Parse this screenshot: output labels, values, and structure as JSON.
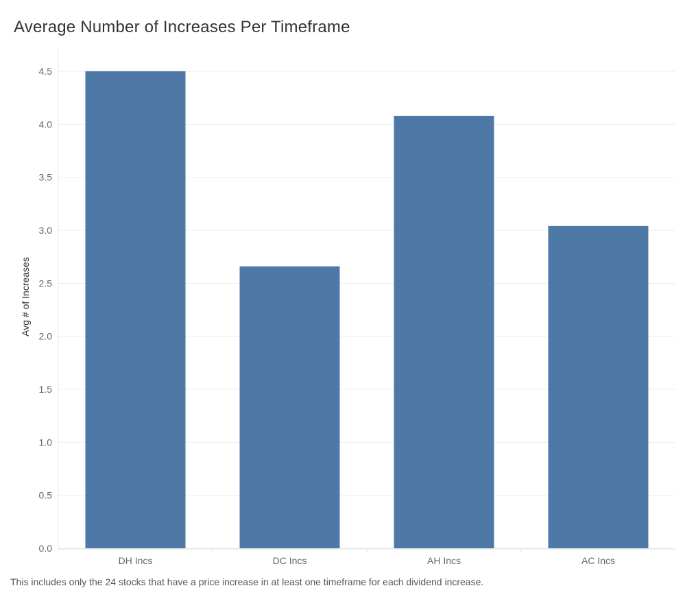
{
  "chart_data": {
    "type": "bar",
    "title": "Average Number of Increases Per Timeframe",
    "ylabel": "Avg # of Increases",
    "xlabel": "",
    "categories": [
      "DH Incs",
      "DC Incs",
      "AH Incs",
      "AC Incs"
    ],
    "values": [
      4.5,
      2.66,
      4.08,
      3.04
    ],
    "ylim": [
      0,
      4.5
    ],
    "yticks": [
      "0.0",
      "0.5",
      "1.0",
      "1.5",
      "2.0",
      "2.5",
      "3.0",
      "3.5",
      "4.0",
      "4.5"
    ],
    "grid": true,
    "legend": "none",
    "bar_color": "#4e79a7",
    "caption": "This includes only the 24 stocks that have a price increase in at least one timeframe for each dividend increase."
  }
}
